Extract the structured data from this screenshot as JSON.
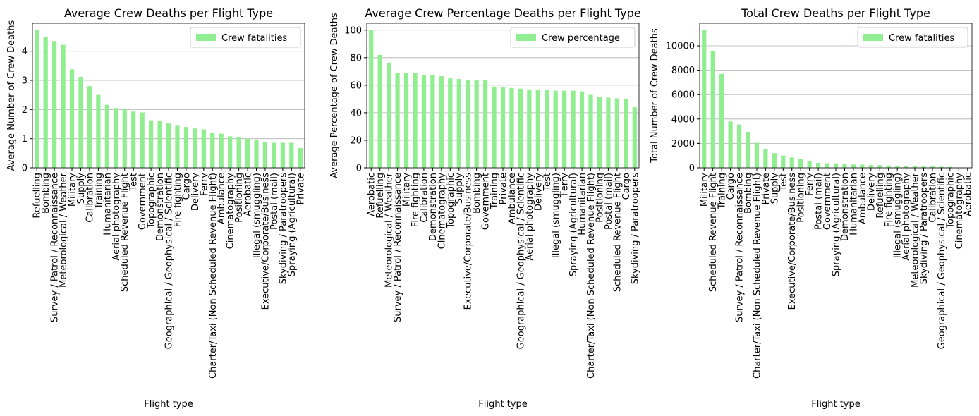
{
  "chart_data": [
    {
      "type": "bar",
      "title": "Average Crew Deaths per Flight Type",
      "x_label": "Flight type",
      "y_label": "Average Number of Crew Deaths",
      "categories": [
        "Refuelling",
        "Bombing",
        "Survey / Patrol / Reconnaissance",
        "Meteorological / Weather",
        "Military",
        "Supply",
        "Calibration",
        "Training",
        "Humanitarian",
        "Aerial photography",
        "Scheduled Revenue Flight",
        "Test",
        "Government",
        "Topographic",
        "Demonstration",
        "Geographical / Geophysical / Scientific",
        "Fire fighting",
        "Cargo",
        "Delivery",
        "Ferry",
        "Charter/Taxi (Non Scheduled Revenue Flight)",
        "Ambulance",
        "Cinematography",
        "Positioning",
        "Aerobatic",
        "Illegal (smuggling)",
        "Executive/Corporate/Business",
        "Postal (mail)",
        "Skydiving / Paratroopers",
        "Spraying (Agricultural)",
        "Private"
      ],
      "series": [
        {
          "name": "Crew fatalities",
          "color": "#90ee90",
          "values": [
            4.72,
            4.48,
            4.35,
            4.22,
            3.38,
            3.12,
            2.8,
            2.5,
            2.16,
            2.05,
            2.0,
            1.93,
            1.9,
            1.63,
            1.6,
            1.52,
            1.47,
            1.4,
            1.35,
            1.32,
            1.2,
            1.17,
            1.08,
            1.05,
            1.0,
            0.97,
            0.87,
            0.86,
            0.86,
            0.86,
            0.68
          ]
        }
      ],
      "ylim": [
        0,
        4.96
      ],
      "yticks": [
        0,
        1,
        2,
        3,
        4
      ],
      "grid": true,
      "legend": "upper right"
    },
    {
      "type": "bar",
      "title": "Average Crew Percentage Deaths per Flight Type",
      "x_label": "Flight type",
      "y_label": "Average Percentage of Crew Deaths",
      "categories": [
        "Aerobatic",
        "Refuelling",
        "Meteorological / Weather",
        "Survey / Patrol / Reconnaissance",
        "Military",
        "Fire fighting",
        "Calibration",
        "Demonstration",
        "Cinematography",
        "Topographic",
        "Supply",
        "Executive/Corporate/Business",
        "Bombing",
        "Government",
        "Training",
        "Private",
        "Ambulance",
        "Geographical / Geophysical / Scientific",
        "Aerial photography",
        "Delivery",
        "Test",
        "Illegal (smuggling)",
        "Ferry",
        "Spraying (Agricultural)",
        "Humanitarian",
        "Charter/Taxi (Non Scheduled Revenue Flight)",
        "Positioning",
        "Postal (mail)",
        "Scheduled Revenue Flight",
        "Cargo",
        "Skydiving / Paratroopers"
      ],
      "series": [
        {
          "name": "Crew percentage",
          "color": "#90ee90",
          "values": [
            100,
            82,
            76,
            69,
            69,
            69,
            67.5,
            67.5,
            66.5,
            65,
            64.5,
            64,
            63.5,
            63.5,
            59,
            58.5,
            58,
            57.5,
            57,
            56.5,
            56.5,
            56,
            56,
            56,
            55.5,
            53,
            51.5,
            51,
            50.5,
            50,
            44
          ]
        }
      ],
      "ylim": [
        0,
        105
      ],
      "yticks": [
        0,
        20,
        40,
        60,
        80,
        100
      ],
      "grid": true,
      "legend": "upper right"
    },
    {
      "type": "bar",
      "title": "Total Crew Deaths per Flight Type",
      "x_label": "Flight type",
      "y_label": "Total Number of Crew Deaths",
      "categories": [
        "Military",
        "Scheduled Revenue Flight",
        "Training",
        "Cargo",
        "Survey / Patrol / Reconnaissance",
        "Bombing",
        "Charter/Taxi (Non Scheduled Revenue Flight)",
        "Private",
        "Supply",
        "Test",
        "Executive/Corporate/Business",
        "Positioning",
        "Ferry",
        "Postal (mail)",
        "Government",
        "Spraying (Agricultural)",
        "Demonstration",
        "Humanitarian",
        "Ambulance",
        "Delivery",
        "Refuelling",
        "Fire fighting",
        "Illegal (smuggling)",
        "Aerial photography",
        "Meteorological / Weather",
        "Skydiving / Paratroopers",
        "Calibration",
        "Geographical / Geophysical / Scientific",
        "Topographic",
        "Cinematography",
        "Aerobatic"
      ],
      "series": [
        {
          "name": "Crew fatalities",
          "color": "#90ee90",
          "values": [
            11300,
            9550,
            7700,
            3800,
            3550,
            2950,
            2050,
            1550,
            1200,
            1000,
            850,
            750,
            550,
            400,
            380,
            370,
            290,
            270,
            260,
            230,
            220,
            200,
            180,
            160,
            150,
            130,
            110,
            90,
            70,
            30,
            5
          ]
        }
      ],
      "ylim": [
        0,
        11850
      ],
      "yticks": [
        0,
        2000,
        4000,
        6000,
        8000,
        10000
      ],
      "grid": true,
      "legend": "upper right"
    }
  ]
}
